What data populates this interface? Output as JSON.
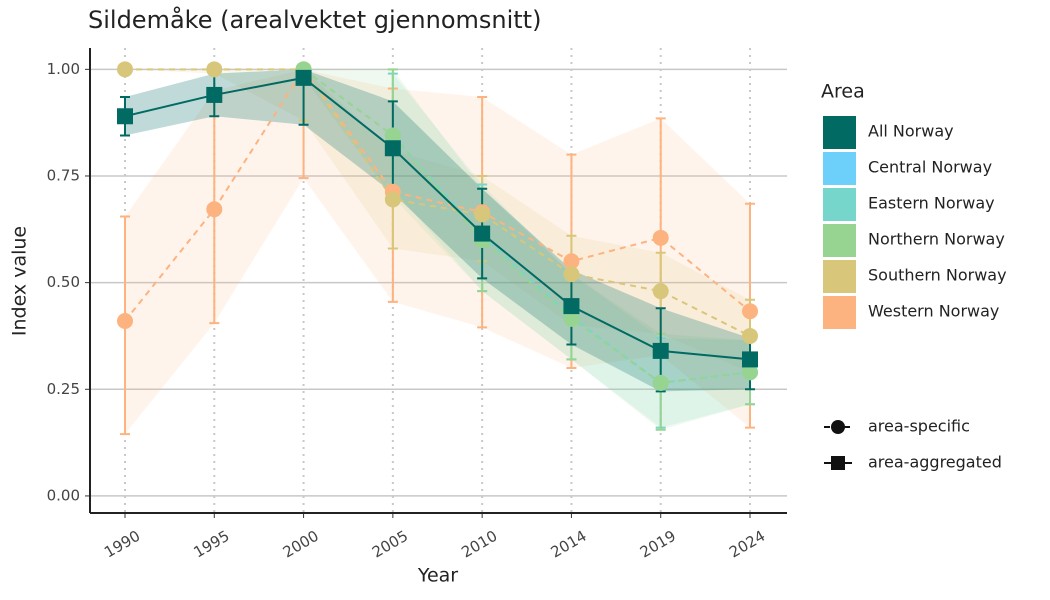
{
  "chart_data": {
    "type": "line",
    "title": "Sildemåke (arealvektet gjennomsnitt)",
    "x_label": "Year",
    "y_label": "Index value",
    "categories": [
      "1990",
      "1995",
      "2000",
      "2005",
      "2010",
      "2014",
      "2019",
      "2024"
    ],
    "ylim": [
      -0.04,
      1.05
    ],
    "yticks": [
      {
        "value": 0,
        "label": "0.00"
      },
      {
        "value": 0.25,
        "label": "0.25"
      },
      {
        "value": 0.5,
        "label": "0.50"
      },
      {
        "value": 0.75,
        "label": "0.75"
      },
      {
        "value": 1,
        "label": "1.00"
      }
    ],
    "grid": true,
    "legend_title": "Area",
    "series": [
      {
        "name": "Western Norway",
        "color": "#fdb37f",
        "marker": "circle",
        "dash": true,
        "values": [
          0.41,
          0.672,
          1.0,
          0.713,
          0.665,
          0.55,
          0.605,
          0.433
        ],
        "lower": [
          0.145,
          0.405,
          0.745,
          0.455,
          0.395,
          0.3,
          0.33,
          0.16
        ],
        "upper": [
          0.655,
          0.95,
          1.0,
          0.955,
          0.935,
          0.8,
          0.885,
          0.685
        ]
      },
      {
        "name": "Southern Norway",
        "color": "#d8c77a",
        "marker": "circle",
        "dash": true,
        "values": [
          1.0,
          1.0,
          1.0,
          0.695,
          0.66,
          0.52,
          0.48,
          0.375
        ],
        "lower": [
          1.0,
          0.99,
          0.88,
          0.58,
          0.55,
          0.4,
          0.38,
          0.29
        ],
        "upper": [
          1.0,
          1.0,
          1.0,
          0.81,
          0.75,
          0.61,
          0.57,
          0.46
        ]
      },
      {
        "name": "Central Norway",
        "color": "#6dd0fb",
        "marker": "circle",
        "dash": true,
        "values": [
          null,
          null,
          null,
          null,
          null,
          null,
          null,
          null
        ],
        "lower": [
          null,
          null,
          null,
          null,
          null,
          null,
          null,
          null
        ],
        "upper": [
          null,
          null,
          null,
          null,
          null,
          null,
          null,
          null
        ]
      },
      {
        "name": "Eastern Norway",
        "color": "#77d6cc",
        "marker": "circle",
        "dash": true,
        "values": [
          null,
          null,
          null,
          0.845,
          0.61,
          0.42,
          0.265,
          0.29
        ],
        "lower": [
          null,
          null,
          null,
          0.72,
          0.48,
          0.32,
          0.16,
          0.215
        ],
        "upper": [
          null,
          null,
          null,
          0.99,
          0.73,
          0.52,
          0.37,
          0.365
        ]
      },
      {
        "name": "Northern Norway",
        "color": "#98d491",
        "marker": "circle",
        "dash": true,
        "values": [
          null,
          null,
          1.0,
          0.845,
          0.6,
          0.415,
          0.265,
          0.29
        ],
        "lower": [
          null,
          null,
          0.98,
          0.7,
          0.48,
          0.32,
          0.155,
          0.215
        ],
        "upper": [
          null,
          null,
          1.0,
          1.0,
          0.72,
          0.52,
          0.38,
          0.365
        ]
      },
      {
        "name": "All Norway",
        "color": "#006a63",
        "marker": "square",
        "dash": false,
        "values": [
          0.89,
          0.94,
          0.98,
          0.815,
          0.615,
          0.445,
          0.34,
          0.32
        ],
        "lower": [
          0.845,
          0.89,
          0.87,
          0.71,
          0.51,
          0.355,
          0.245,
          0.25
        ],
        "upper": [
          0.935,
          0.99,
          1.0,
          0.925,
          0.72,
          0.53,
          0.44,
          0.37
        ]
      }
    ],
    "legend_order": [
      5,
      2,
      3,
      4,
      1,
      0
    ],
    "shape_legend": [
      {
        "label": "area-specific",
        "shape": "circle"
      },
      {
        "label": "area-aggregated",
        "shape": "square"
      }
    ]
  }
}
